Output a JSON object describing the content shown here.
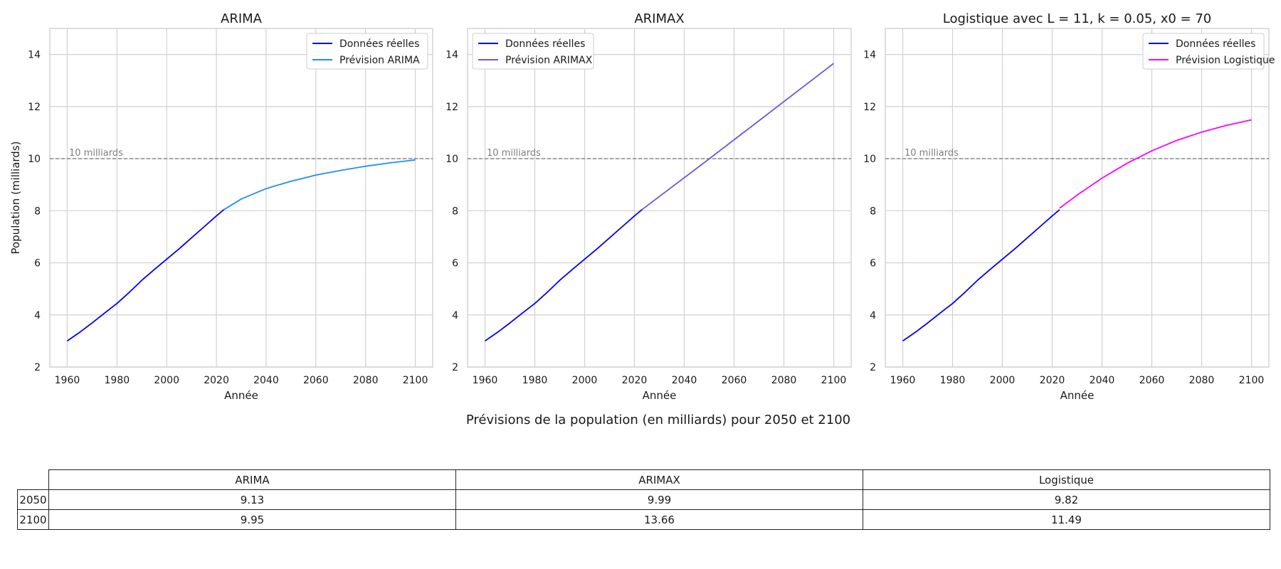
{
  "colors": {
    "actual": "#0000ee",
    "arima": "#1e8ff0",
    "arimax": "#6a5ad6",
    "logistic": "#ff00ff",
    "threshold": "#7f7f7f",
    "grid": "#d0d0d0"
  },
  "chart_data": [
    {
      "type": "line",
      "title": "ARIMA",
      "xlabel": "Année",
      "ylabel": "Population (milliards)",
      "xlim": [
        1953,
        2107
      ],
      "ylim": [
        2,
        15
      ],
      "xticks": [
        1960,
        1980,
        2000,
        2020,
        2040,
        2060,
        2080,
        2100
      ],
      "yticks": [
        2,
        4,
        6,
        8,
        10,
        12,
        14
      ],
      "grid": true,
      "legend_position": "top-right",
      "hline": {
        "y": 10,
        "label": "10 milliards"
      },
      "series": [
        {
          "name": "Données réelles",
          "color": "#0000ee",
          "x": [
            1960,
            1965,
            1970,
            1975,
            1980,
            1985,
            1990,
            1995,
            2000,
            2005,
            2010,
            2015,
            2020,
            2023
          ],
          "y": [
            3.0,
            3.33,
            3.69,
            4.07,
            4.44,
            4.87,
            5.33,
            5.74,
            6.14,
            6.54,
            6.96,
            7.38,
            7.8,
            8.04
          ]
        },
        {
          "name": "Prévision ARIMA",
          "color": "#1e8ff0",
          "x": [
            2023,
            2030,
            2040,
            2050,
            2060,
            2070,
            2080,
            2090,
            2100
          ],
          "y": [
            8.04,
            8.45,
            8.85,
            9.13,
            9.37,
            9.55,
            9.71,
            9.84,
            9.95
          ]
        }
      ]
    },
    {
      "type": "line",
      "title": "ARIMAX",
      "xlabel": "Année",
      "ylabel": "",
      "xlim": [
        1953,
        2107
      ],
      "ylim": [
        2,
        15
      ],
      "xticks": [
        1960,
        1980,
        2000,
        2020,
        2040,
        2060,
        2080,
        2100
      ],
      "yticks": [
        2,
        4,
        6,
        8,
        10,
        12,
        14
      ],
      "grid": true,
      "legend_position": "top-left",
      "hline": {
        "y": 10,
        "label": "10 milliards"
      },
      "series": [
        {
          "name": "Données réelles",
          "color": "#0000ee",
          "x": [
            1960,
            1965,
            1970,
            1975,
            1980,
            1985,
            1990,
            1995,
            2000,
            2005,
            2010,
            2015,
            2020,
            2023
          ],
          "y": [
            3.0,
            3.33,
            3.69,
            4.07,
            4.44,
            4.87,
            5.33,
            5.74,
            6.14,
            6.54,
            6.96,
            7.38,
            7.8,
            8.04
          ]
        },
        {
          "name": "Prévision ARIMAX",
          "color": "#6a5ad6",
          "x": [
            2023,
            2050,
            2100
          ],
          "y": [
            8.04,
            9.99,
            13.66
          ]
        }
      ]
    },
    {
      "type": "line",
      "title": "Logistique avec L = 11, k = 0.05, x0 = 70",
      "xlabel": "Année",
      "ylabel": "",
      "xlim": [
        1953,
        2107
      ],
      "ylim": [
        2,
        15
      ],
      "xticks": [
        1960,
        1980,
        2000,
        2020,
        2040,
        2060,
        2080,
        2100
      ],
      "yticks": [
        2,
        4,
        6,
        8,
        10,
        12,
        14
      ],
      "grid": true,
      "legend_position": "top-right",
      "hline": {
        "y": 10,
        "label": "10 milliards"
      },
      "series": [
        {
          "name": "Données réelles",
          "color": "#0000ee",
          "x": [
            1960,
            1965,
            1970,
            1975,
            1980,
            1985,
            1990,
            1995,
            2000,
            2005,
            2010,
            2015,
            2020,
            2023
          ],
          "y": [
            3.0,
            3.33,
            3.69,
            4.07,
            4.44,
            4.87,
            5.33,
            5.74,
            6.14,
            6.54,
            6.96,
            7.38,
            7.8,
            8.04
          ]
        },
        {
          "name": "Prévision Logistique",
          "color": "#ff00ff",
          "x": [
            2023,
            2030,
            2040,
            2050,
            2060,
            2070,
            2080,
            2090,
            2100
          ],
          "y": [
            8.1,
            8.6,
            9.25,
            9.82,
            10.3,
            10.7,
            11.02,
            11.28,
            11.49
          ]
        }
      ]
    }
  ],
  "table": {
    "title": "Prévisions de la population (en milliards) pour 2050 et 2100",
    "columns": [
      "ARIMA",
      "ARIMAX",
      "Logistique"
    ],
    "rows": [
      {
        "label": "2050",
        "values": [
          "9.13",
          "9.99",
          "9.82"
        ]
      },
      {
        "label": "2100",
        "values": [
          "9.95",
          "13.66",
          "11.49"
        ]
      }
    ]
  }
}
